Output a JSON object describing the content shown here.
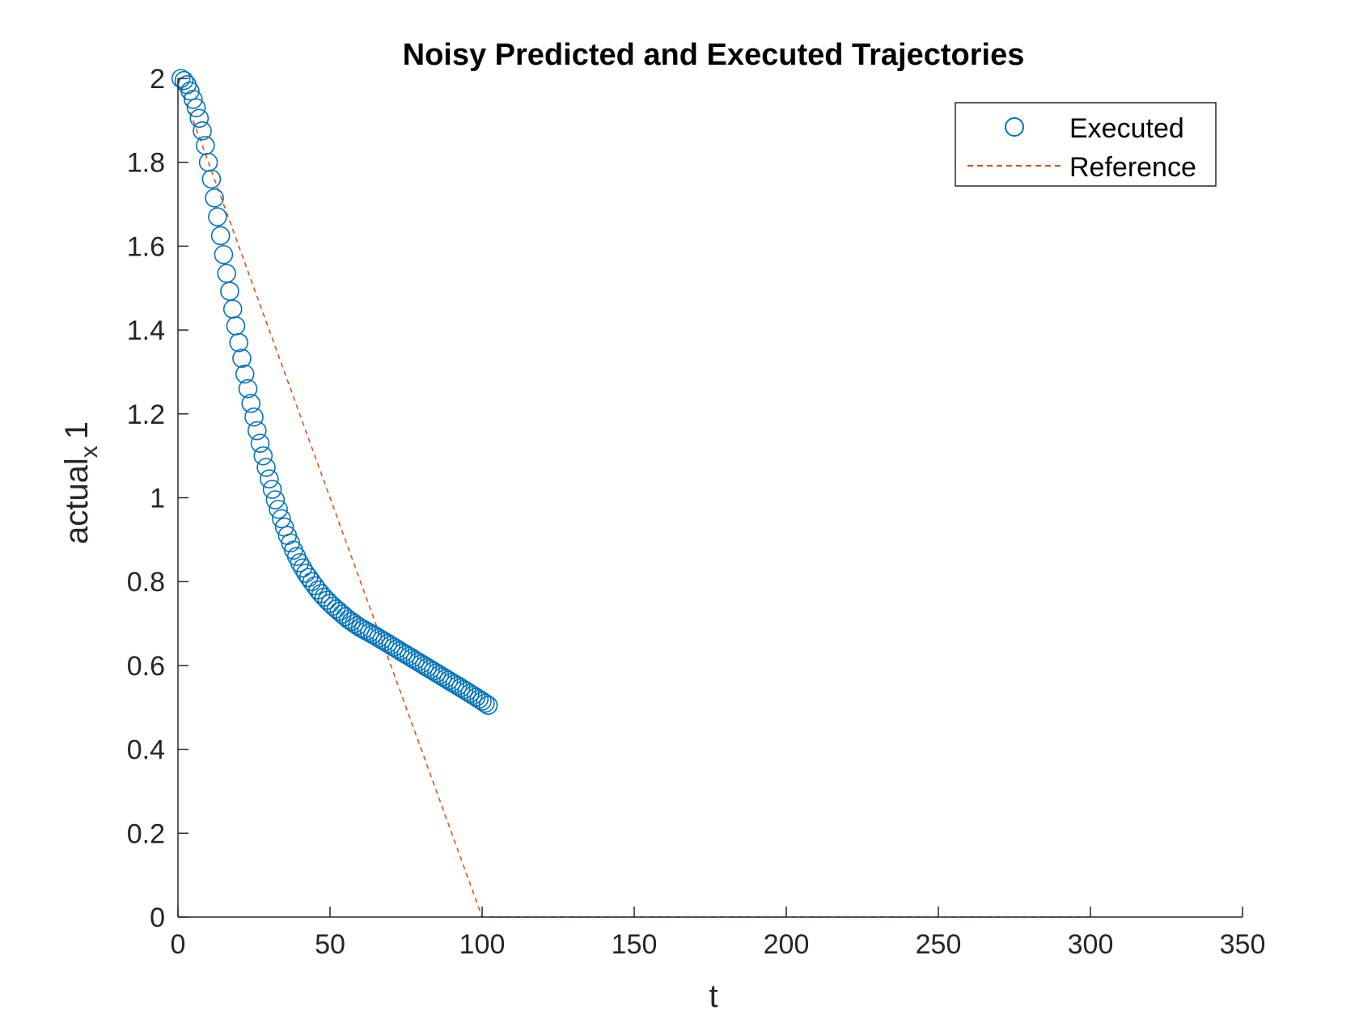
{
  "chart_data": {
    "type": "scatter",
    "title": "Noisy Predicted and Executed Trajectories",
    "xlabel": "t",
    "ylabel": {
      "base": "actual",
      "subscript": "x",
      "suffix": "1"
    },
    "xlim": [
      0,
      350
    ],
    "ylim": [
      0,
      2
    ],
    "xticks": [
      "0",
      "50",
      "100",
      "150",
      "200",
      "250",
      "300",
      "350"
    ],
    "yticks": [
      "0",
      "0.2",
      "0.4",
      "0.6",
      "0.8",
      "1",
      "1.2",
      "1.4",
      "1.6",
      "1.8",
      "2"
    ],
    "grid": false,
    "legend_position": "top-right",
    "series": [
      {
        "name": "Executed",
        "style": "circles",
        "color": "#0072BD",
        "curve": [
          [
            1,
            2.0
          ],
          [
            2,
            1.995
          ],
          [
            3,
            1.985
          ],
          [
            4,
            1.97
          ],
          [
            5,
            1.95
          ],
          [
            6,
            1.93
          ],
          [
            7,
            1.905
          ],
          [
            8,
            1.875
          ],
          [
            9,
            1.84
          ],
          [
            10,
            1.8
          ],
          [
            11,
            1.76
          ],
          [
            12,
            1.715
          ],
          [
            14,
            1.625
          ],
          [
            16,
            1.535
          ],
          [
            18,
            1.45
          ],
          [
            20,
            1.37
          ],
          [
            22,
            1.295
          ],
          [
            24,
            1.225
          ],
          [
            26,
            1.16
          ],
          [
            28,
            1.1
          ],
          [
            30,
            1.045
          ],
          [
            32,
            0.995
          ],
          [
            34,
            0.95
          ],
          [
            36,
            0.91
          ],
          [
            38,
            0.875
          ],
          [
            40,
            0.845
          ],
          [
            42,
            0.82
          ],
          [
            44,
            0.8
          ],
          [
            46,
            0.78
          ],
          [
            48,
            0.763
          ],
          [
            50,
            0.748
          ],
          [
            52,
            0.735
          ],
          [
            56,
            0.71
          ],
          [
            60,
            0.69
          ],
          [
            65,
            0.67
          ],
          [
            70,
            0.648
          ],
          [
            75,
            0.626
          ],
          [
            80,
            0.604
          ],
          [
            85,
            0.582
          ],
          [
            90,
            0.56
          ],
          [
            95,
            0.538
          ],
          [
            100,
            0.515
          ],
          [
            102,
            0.505
          ]
        ]
      },
      {
        "name": "Reference",
        "style": "dashed",
        "color": "#D95319",
        "points": [
          [
            0,
            2.0
          ],
          [
            100,
            0.0
          ],
          [
            300,
            0.0
          ]
        ]
      }
    ]
  }
}
